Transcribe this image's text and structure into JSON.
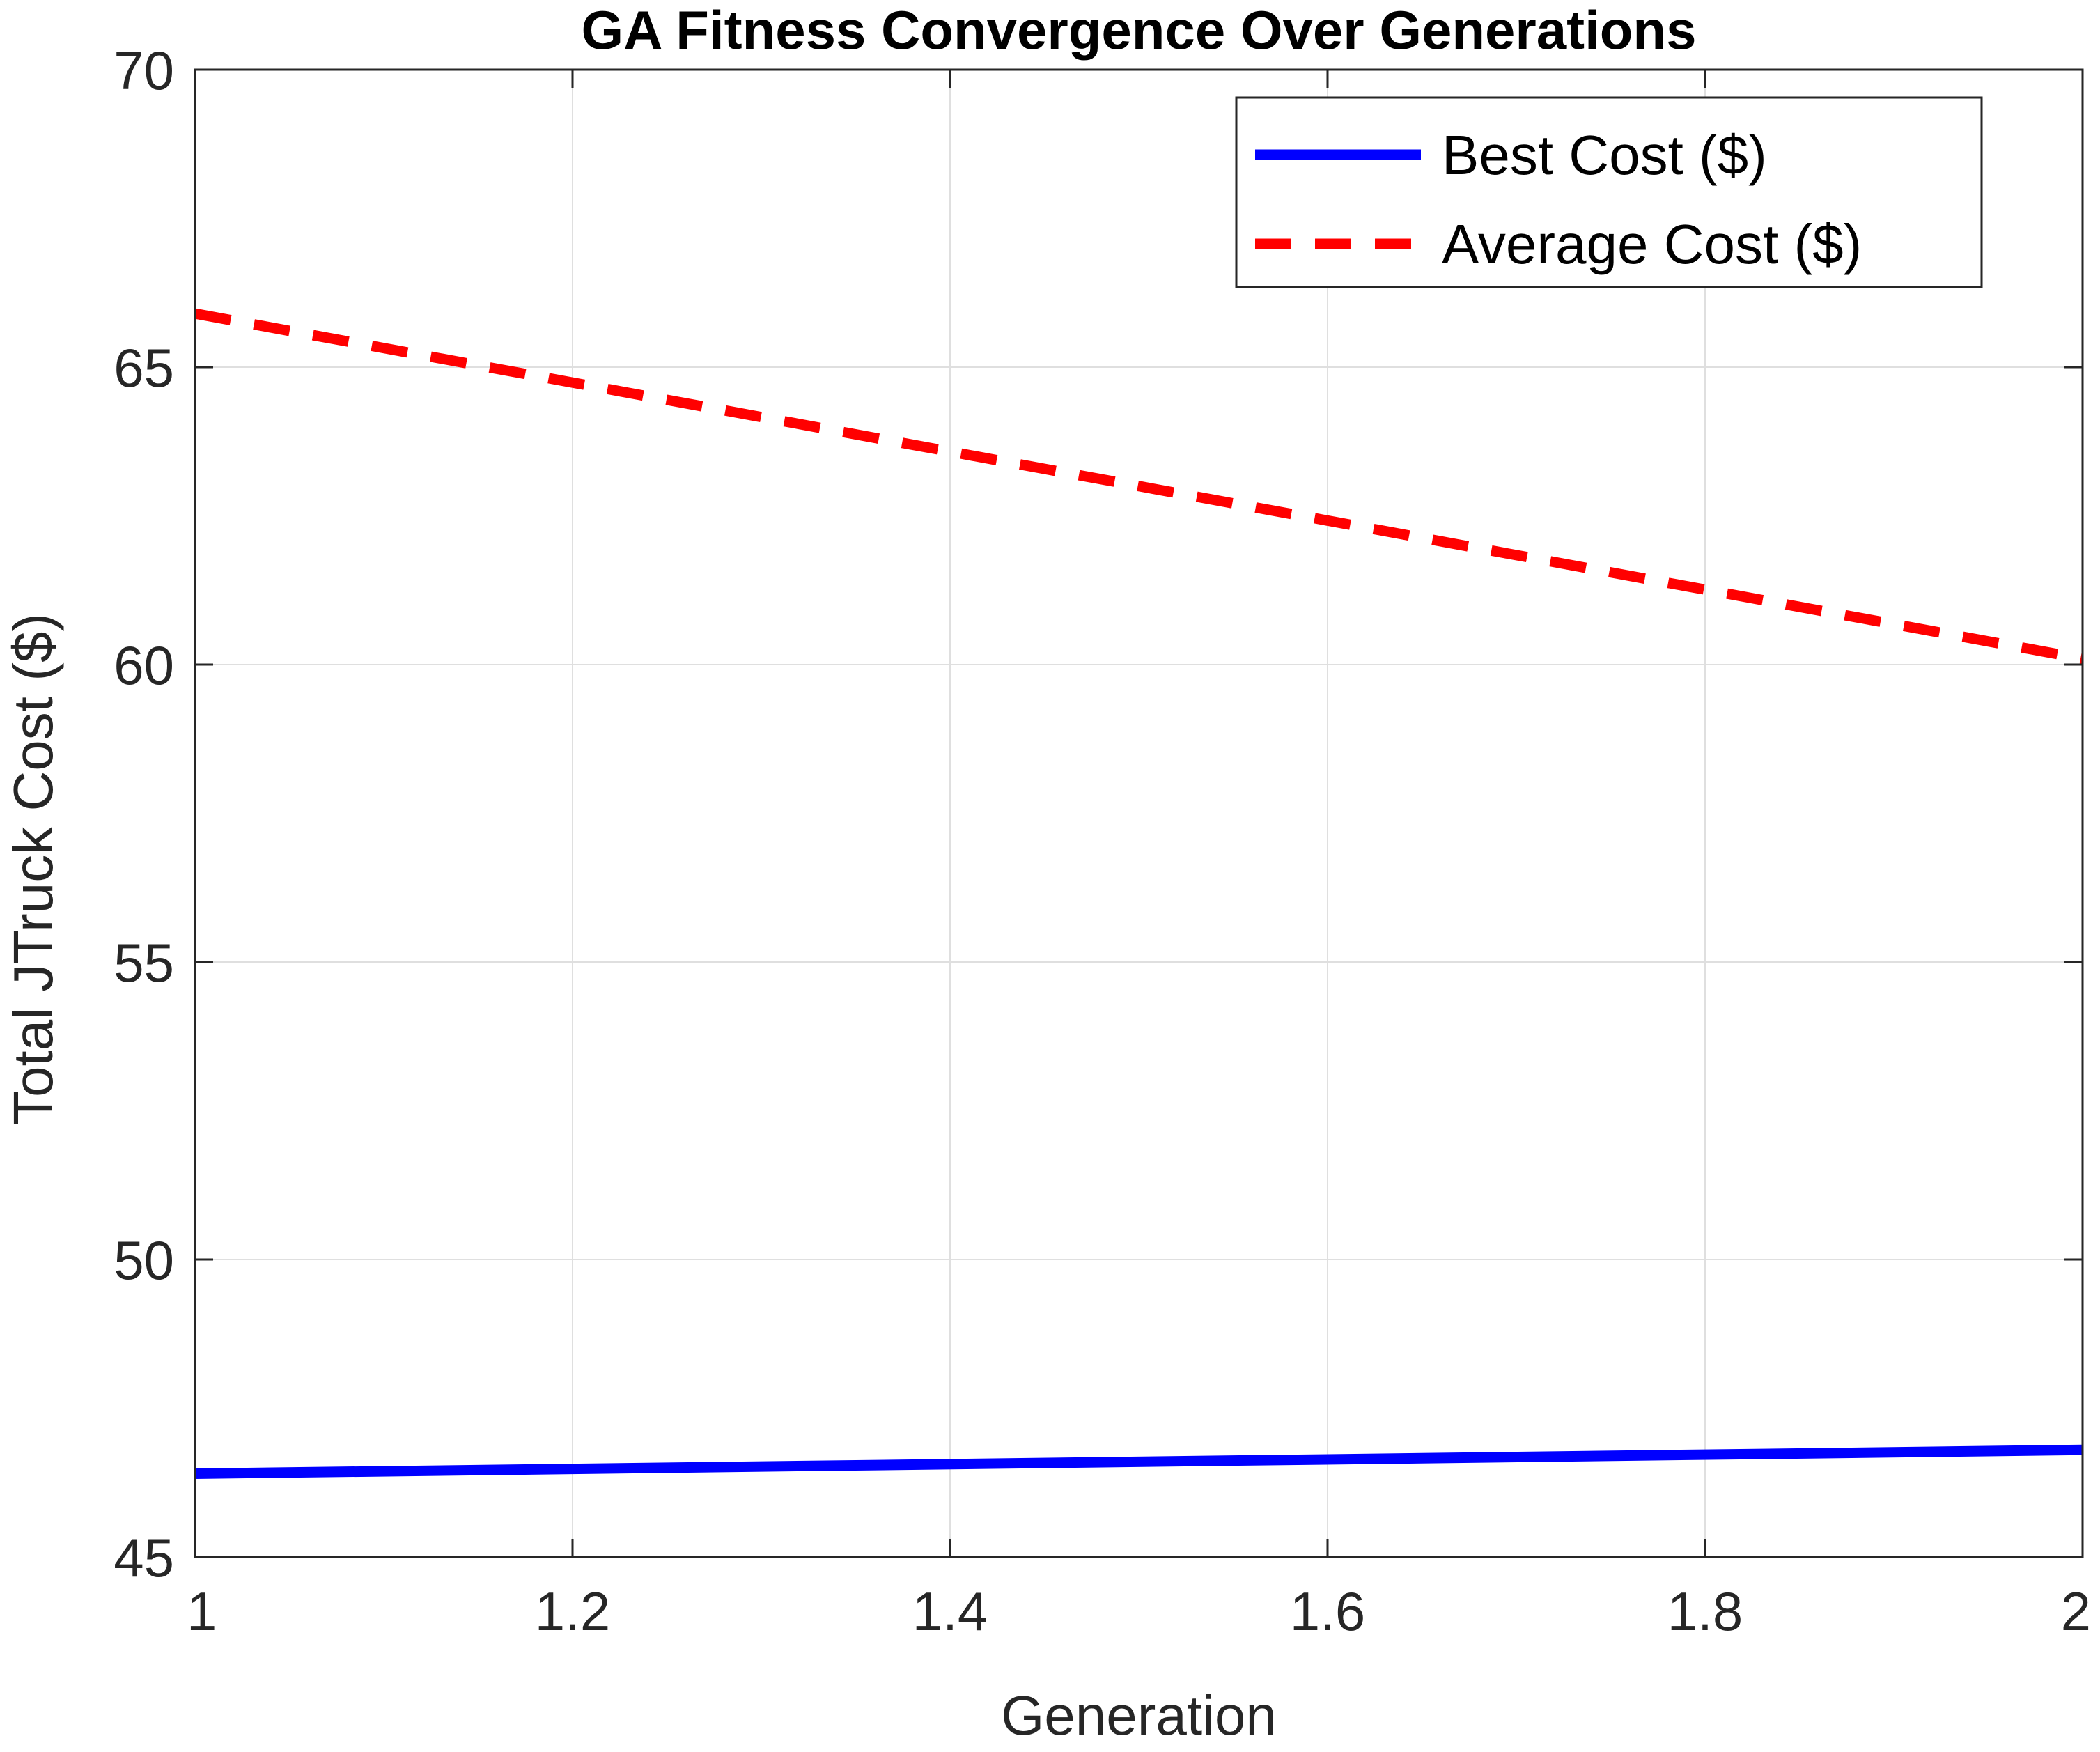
{
  "chart_data": {
    "type": "line",
    "title": "GA Fitness Convergence Over Generations",
    "xlabel": "Generation",
    "ylabel": "Total JTruck Cost ($)",
    "xlim": [
      1,
      2
    ],
    "ylim": [
      45,
      70
    ],
    "xticks": [
      1,
      1.2,
      1.4,
      1.6,
      1.8,
      2
    ],
    "xtick_labels": [
      "1",
      "1.2",
      "1.4",
      "1.6",
      "1.8",
      "2"
    ],
    "yticks": [
      45,
      50,
      55,
      60,
      65,
      70
    ],
    "ytick_labels": [
      "45",
      "50",
      "55",
      "60",
      "65",
      "70"
    ],
    "grid": true,
    "legend_position": "top-right",
    "x": [
      1,
      2
    ],
    "series": [
      {
        "name": "Best Cost ($)",
        "values": [
          46.4,
          46.8
        ],
        "color": "#0000ff",
        "style": "solid"
      },
      {
        "name": "Average Cost ($)",
        "values": [
          65.9,
          60.1
        ],
        "color": "#ff0000",
        "style": "dashed"
      }
    ]
  }
}
